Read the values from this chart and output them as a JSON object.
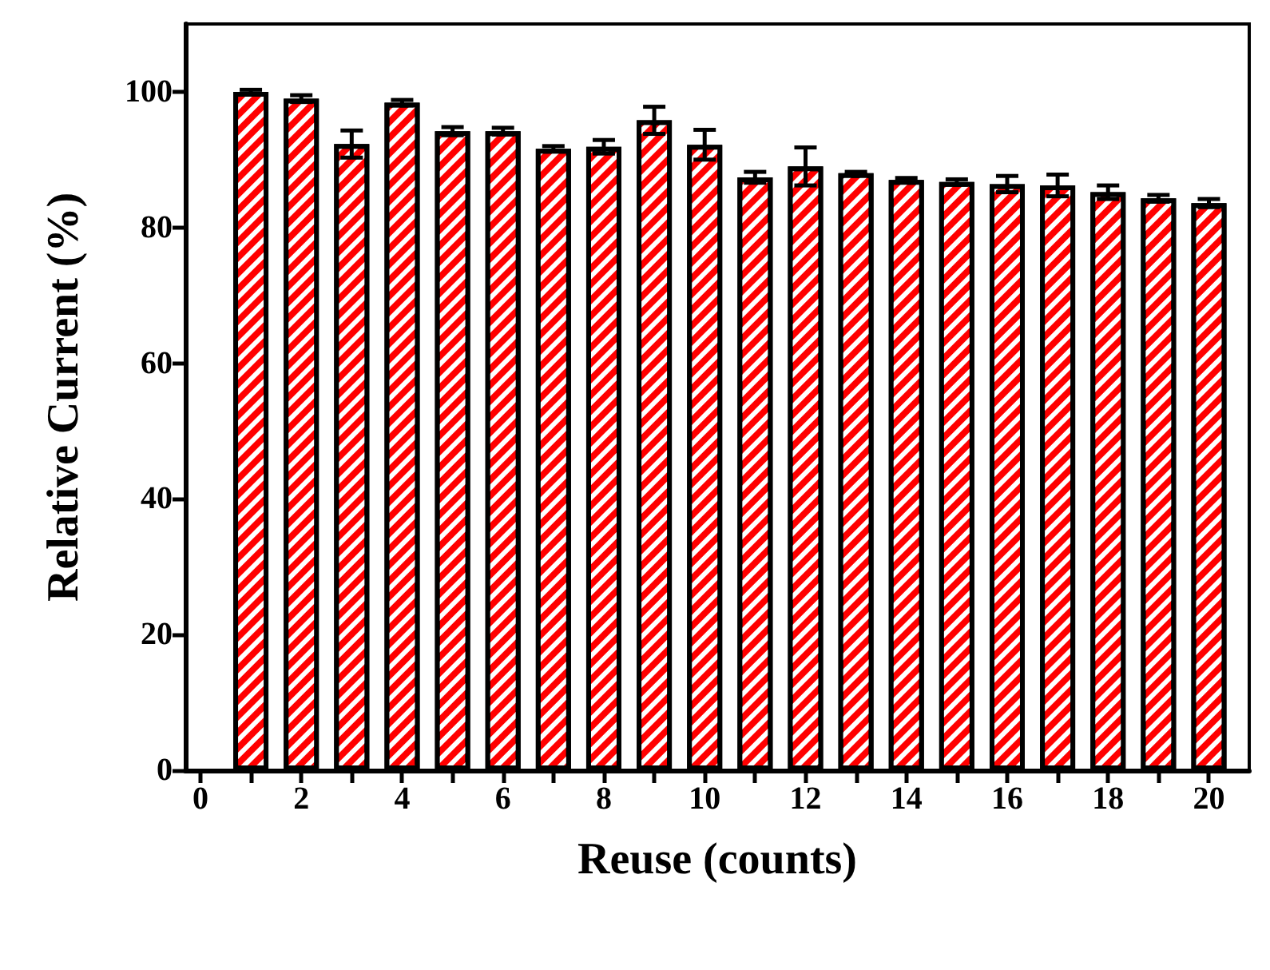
{
  "chart_data": {
    "type": "bar",
    "xlabel": "Reuse (counts)",
    "ylabel": "Relative Current (%)",
    "x": [
      1,
      2,
      3,
      4,
      5,
      6,
      7,
      8,
      9,
      10,
      11,
      12,
      13,
      14,
      15,
      16,
      17,
      18,
      19,
      20
    ],
    "values": [
      100,
      99,
      92.3,
      98.4,
      94.2,
      94.2,
      91.6,
      91.9,
      95.8,
      92.2,
      87.4,
      89,
      88,
      87,
      86.7,
      86.4,
      86.2,
      85.2,
      84.3,
      83.6
    ],
    "errors": [
      0.3,
      0.5,
      2,
      0.4,
      0.6,
      0.5,
      0.4,
      1,
      2,
      2.2,
      0.8,
      2.8,
      0.2,
      0.3,
      0.4,
      1.2,
      1.6,
      1,
      0.5,
      0.6
    ],
    "color": "#ff0000",
    "xlim": [
      -0.3,
      20.8
    ],
    "xticks": [
      0,
      {
        "value": 1,
        "label": null
      },
      2,
      {
        "value": 3,
        "label": null
      },
      4,
      {
        "value": 5,
        "label": null
      },
      6,
      {
        "value": 7,
        "label": null
      },
      8,
      {
        "value": 9,
        "label": null
      },
      10,
      {
        "value": 11,
        "label": null
      },
      12,
      {
        "value": 13,
        "label": null
      },
      14,
      {
        "value": 15,
        "label": null
      },
      16,
      {
        "value": 17,
        "label": null
      },
      18,
      {
        "value": 19,
        "label": null
      },
      20
    ],
    "ylim": [
      0,
      110
    ],
    "yticks": [
      0,
      20,
      40,
      60,
      80,
      100
    ],
    "grid": false
  }
}
